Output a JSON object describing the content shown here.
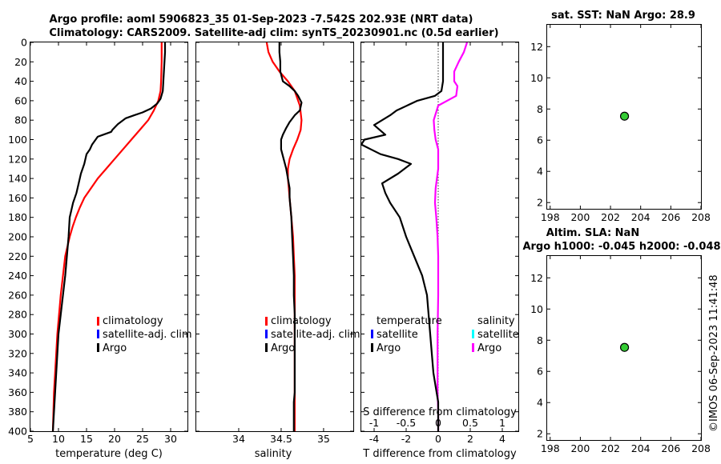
{
  "title": {
    "line1": "Argo profile: aoml 5906823_35 01-Sep-2023 -7.542S 202.93E (NRT data)",
    "line2": "Climatology: CARS2009. Satellite-adj clim: synTS_20230901.nc (0.5d earlier)"
  },
  "timestamp": "©IMOS 06-Sep-2023 11:41:48",
  "depth_ticks": [
    "0",
    "20",
    "40",
    "60",
    "80",
    "100",
    "120",
    "140",
    "160",
    "180",
    "200",
    "220",
    "240",
    "260",
    "280",
    "300",
    "320",
    "340",
    "360",
    "380",
    "400"
  ],
  "legend_profiles": {
    "climatology": "climatology",
    "satellite": "satellite-adj. clim",
    "argo": "Argo"
  },
  "legend_diff": {
    "temperature_header": "temperature",
    "salinity_header": "salinity",
    "satellite": "satellite",
    "argo": "Argo"
  },
  "colors": {
    "argo": "#000000",
    "climatology": "#ff0000",
    "satellite": "#0000ff",
    "salt_diff": "#ff00ff",
    "salt_sat": "#00ffff",
    "marker": "#33cc33"
  },
  "chart_data": [
    {
      "type": "line",
      "name": "temperature",
      "xlabel": "temperature (deg C)",
      "ylabel": "",
      "xlim": [
        5,
        33
      ],
      "ylim": [
        400,
        0
      ],
      "xticks": [
        5,
        10,
        15,
        20,
        25,
        30
      ],
      "series": [
        {
          "name": "Argo",
          "color": "#000000",
          "x": [
            29.0,
            29.0,
            28.9,
            28.8,
            28.7,
            28.6,
            28.2,
            27.6,
            26.5,
            25.0,
            23.5,
            22.0,
            20.6,
            19.6,
            19.4,
            17.0,
            16.0,
            15.6,
            15.0,
            14.6,
            14.0,
            13.6,
            13.2,
            12.6,
            12.0,
            11.8,
            11.5,
            11.2,
            10.8,
            10.4,
            10.0,
            9.8,
            9.6,
            9.4,
            9.3,
            9.2,
            9.1,
            9.0
          ],
          "y": [
            0,
            10,
            20,
            30,
            40,
            50,
            58,
            63,
            68,
            72,
            75,
            78,
            84,
            90,
            92,
            97,
            105,
            110,
            115,
            125,
            135,
            145,
            155,
            165,
            180,
            200,
            220,
            240,
            260,
            280,
            300,
            320,
            340,
            360,
            370,
            380,
            390,
            400
          ]
        },
        {
          "name": "climatology",
          "color": "#ff0000",
          "x": [
            28.4,
            28.4,
            28.3,
            28.2,
            27.8,
            27.0,
            26.0,
            24.5,
            23.0,
            21.5,
            20.0,
            18.5,
            17.0,
            15.8,
            14.6,
            13.8,
            13.1,
            12.5,
            12.0,
            11.6,
            11.2,
            10.8,
            10.4,
            10.1,
            9.8,
            9.6,
            9.4,
            9.2,
            9.1,
            9.0
          ],
          "y": [
            0,
            20,
            40,
            50,
            60,
            70,
            80,
            90,
            100,
            110,
            120,
            130,
            140,
            150,
            160,
            170,
            180,
            190,
            200,
            210,
            220,
            240,
            260,
            280,
            300,
            320,
            340,
            360,
            380,
            400
          ]
        }
      ]
    },
    {
      "type": "line",
      "name": "salinity",
      "xlabel": "salinity",
      "ylabel": "",
      "xlim": [
        33.5,
        35.35
      ],
      "ylim": [
        400,
        0
      ],
      "xticks": [
        34,
        34.5,
        35
      ],
      "series": [
        {
          "name": "Argo",
          "color": "#000000",
          "x": [
            34.48,
            34.48,
            34.49,
            34.49,
            34.52,
            34.6,
            34.66,
            34.7,
            34.74,
            34.72,
            34.66,
            34.6,
            34.56,
            34.52,
            34.5,
            34.5,
            34.53,
            34.56,
            34.58,
            34.6,
            34.6,
            34.62,
            34.63,
            34.64,
            34.65,
            34.65,
            34.66,
            34.66,
            34.66,
            34.66,
            34.66,
            34.65,
            34.65,
            34.65,
            34.65,
            34.65
          ],
          "y": [
            0,
            10,
            20,
            30,
            40,
            45,
            50,
            55,
            62,
            70,
            75,
            82,
            88,
            95,
            100,
            110,
            120,
            130,
            140,
            150,
            160,
            180,
            200,
            220,
            240,
            260,
            280,
            300,
            320,
            340,
            360,
            370,
            380,
            390,
            395,
            400
          ]
        },
        {
          "name": "climatology",
          "color": "#ff0000",
          "x": [
            34.33,
            34.35,
            34.4,
            34.48,
            34.58,
            34.66,
            34.72,
            34.74,
            34.73,
            34.69,
            34.64,
            34.6,
            34.58,
            34.58,
            34.59,
            34.6,
            34.62,
            34.64,
            34.65,
            34.66,
            34.66,
            34.66,
            34.66,
            34.66
          ],
          "y": [
            0,
            10,
            20,
            30,
            40,
            50,
            65,
            80,
            90,
            100,
            110,
            120,
            130,
            140,
            150,
            160,
            180,
            200,
            220,
            240,
            280,
            320,
            360,
            400
          ]
        }
      ]
    },
    {
      "type": "line",
      "name": "difference",
      "xlabel": "T difference from climatology",
      "x2label": "S difference from climatology",
      "ylabel": "",
      "xlim": [
        -4.8,
        5
      ],
      "x2lim": [
        -1.2,
        1.25
      ],
      "ylim": [
        400,
        0
      ],
      "xticks": [
        -4,
        -2,
        0,
        2,
        4
      ],
      "x2ticks": [
        -1,
        -0.5,
        0,
        0.5,
        1
      ],
      "series": [
        {
          "name": "temperature Argo",
          "axis": "T",
          "color": "#000000",
          "x": [
            0.3,
            0.3,
            0.3,
            0.3,
            0.3,
            0.2,
            -0.2,
            -1.3,
            -2.6,
            -3.0,
            -4.0,
            -3.3,
            -4.6,
            -4.8,
            -4.2,
            -3.6,
            -2.5,
            -1.7,
            -2.5,
            -3.5,
            -3.3,
            -3.0,
            -2.4,
            -2.0,
            -1.5,
            -1.0,
            -0.7,
            -0.6,
            -0.5,
            -0.4,
            -0.3,
            -0.2,
            -0.1,
            0.0,
            0.0,
            0.0,
            0.0,
            0.0,
            0.0
          ],
          "y": [
            0,
            10,
            20,
            30,
            40,
            50,
            55,
            60,
            70,
            75,
            85,
            95,
            100,
            105,
            110,
            115,
            120,
            125,
            135,
            145,
            155,
            165,
            180,
            200,
            220,
            240,
            260,
            280,
            300,
            320,
            340,
            350,
            360,
            370,
            380,
            385,
            390,
            395,
            400
          ]
        },
        {
          "name": "salinity Argo",
          "axis": "S",
          "color": "#ff00ff",
          "x": [
            0.45,
            0.4,
            0.32,
            0.25,
            0.25,
            0.3,
            0.28,
            0.0,
            -0.07,
            -0.06,
            -0.04,
            0.0,
            0.0,
            0.0,
            -0.02,
            -0.04,
            -0.05,
            -0.03,
            -0.01,
            0.0,
            0.0,
            0.0,
            -0.01,
            -0.01,
            -0.01,
            0.0,
            0.0
          ],
          "y": [
            0,
            10,
            20,
            30,
            40,
            45,
            55,
            65,
            80,
            90,
            100,
            110,
            120,
            130,
            140,
            150,
            165,
            180,
            200,
            220,
            240,
            260,
            300,
            330,
            360,
            380,
            400
          ]
        }
      ]
    },
    {
      "type": "scatter",
      "name": "sat_sst_map",
      "title": "sat. SST: NaN Argo: 28.9",
      "xlim": [
        197.8,
        208
      ],
      "ylim": [
        1.6,
        13.4
      ],
      "xticks": [
        198,
        200,
        202,
        204,
        206,
        208
      ],
      "yticks": [
        2,
        4,
        6,
        8,
        10,
        12
      ],
      "points": [
        {
          "x": 202.93,
          "y": 7.54
        }
      ]
    },
    {
      "type": "scatter",
      "name": "altim_sla_map",
      "title": "Altim. SLA: NaN",
      "title2": "Argo h1000: -0.045 h2000: -0.048",
      "xlim": [
        197.8,
        208
      ],
      "ylim": [
        1.6,
        13.4
      ],
      "xticks": [
        198,
        200,
        202,
        204,
        206,
        208
      ],
      "yticks": [
        2,
        4,
        6,
        8,
        10,
        12
      ],
      "points": [
        {
          "x": 202.93,
          "y": 7.54
        }
      ]
    }
  ]
}
